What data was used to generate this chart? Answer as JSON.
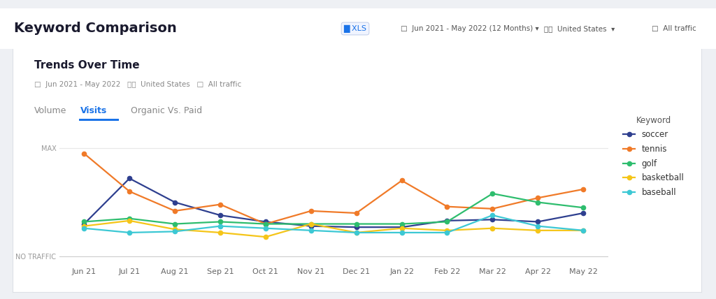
{
  "header_title": "Keyword Comparison",
  "card_title": "Trends Over Time",
  "card_subtitle": "Jun 2021 - May 2022     United States    All traffic",
  "tab_volume": "Volume",
  "tab_visits": "Visits",
  "tab_organic": "Organic Vs. Paid",
  "x_labels": [
    "Jun 21",
    "Jul 21",
    "Aug 21",
    "Sep 21",
    "Oct 21",
    "Nov 21",
    "Dec 21",
    "Jan 22",
    "Feb 22",
    "Mar 22",
    "Apr 22",
    "May 22"
  ],
  "series": {
    "soccer": {
      "color": "#2e3f8f",
      "values": [
        0.3,
        0.72,
        0.5,
        0.38,
        0.32,
        0.28,
        0.27,
        0.27,
        0.33,
        0.34,
        0.32,
        0.4
      ]
    },
    "tennis": {
      "color": "#f07a28",
      "values": [
        0.95,
        0.6,
        0.42,
        0.48,
        0.3,
        0.42,
        0.4,
        0.7,
        0.46,
        0.44,
        0.54,
        0.62
      ]
    },
    "golf": {
      "color": "#2ebd6e",
      "values": [
        0.32,
        0.35,
        0.3,
        0.32,
        0.3,
        0.3,
        0.3,
        0.3,
        0.32,
        0.58,
        0.5,
        0.45
      ]
    },
    "basketball": {
      "color": "#f5c518",
      "values": [
        0.28,
        0.33,
        0.25,
        0.22,
        0.18,
        0.3,
        0.22,
        0.26,
        0.24,
        0.26,
        0.24,
        0.24
      ]
    },
    "baseball": {
      "color": "#3cc8d4",
      "values": [
        0.26,
        0.22,
        0.23,
        0.28,
        0.26,
        0.24,
        0.22,
        0.22,
        0.22,
        0.38,
        0.28,
        0.24
      ]
    }
  },
  "outer_bg": "#eef0f4",
  "card_bg": "#ffffff",
  "header_bg": "#ffffff",
  "grid_color": "#e8e8e8",
  "legend_title": "Keyword",
  "max_label": "MAX",
  "no_traffic_label": "NO TRAFFIC",
  "tab_active_color": "#1a73e8",
  "tab_inactive_color": "#888888",
  "header_text_color": "#1a1a2e",
  "card_border_color": "#dde0e6"
}
